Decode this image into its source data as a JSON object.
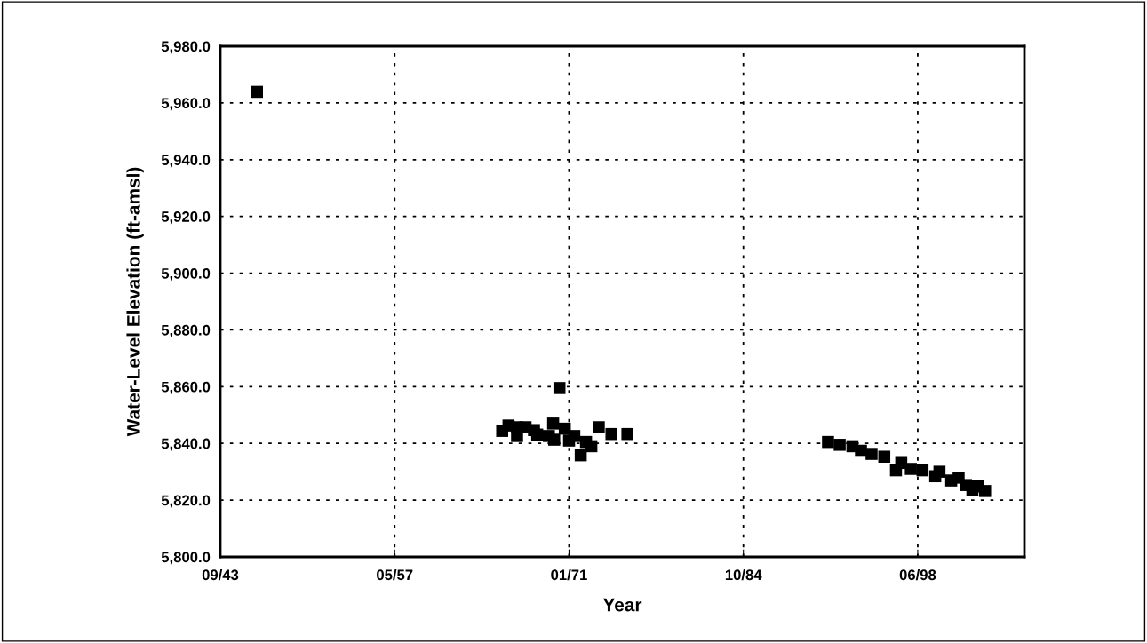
{
  "chart_data": {
    "type": "scatter",
    "xlabel": "Year",
    "ylabel": "Water-Level Elevation (ft-amsl)",
    "x": [
      "1946-08",
      "1965-11",
      "1966-05",
      "1967-01",
      "1967-01",
      "1967-09",
      "1968-05",
      "1968-08",
      "1969-07",
      "1969-11",
      "1969-12",
      "1970-05",
      "1970-10",
      "1971-02",
      "1971-07",
      "1972-01",
      "1972-06",
      "1972-11",
      "1973-06",
      "1974-06",
      "1975-09",
      "1991-06",
      "1992-05",
      "1993-05",
      "1994-01",
      "1994-11",
      "1995-11",
      "1996-10",
      "1997-03",
      "1997-12",
      "1998-11",
      "1999-11",
      "2000-03",
      "2001-02",
      "2001-09",
      "2002-04",
      "2002-10",
      "2003-03",
      "2003-10"
    ],
    "series": [
      {
        "color": "#000000",
        "values": [
          5963.9,
          5844.4,
          5846.3,
          5845.7,
          5842.6,
          5845.7,
          5844.7,
          5843.1,
          5842.6,
          5847.0,
          5841.3,
          5859.5,
          5845.2,
          5841.0,
          5842.6,
          5835.8,
          5840.5,
          5839.0,
          5845.7,
          5843.3,
          5843.3,
          5840.5,
          5839.5,
          5839.0,
          5837.4,
          5836.3,
          5835.3,
          5830.5,
          5833.1,
          5831.0,
          5830.5,
          5828.4,
          5830.0,
          5826.9,
          5827.9,
          5825.3,
          5823.7,
          5824.8,
          5823.2
        ]
      }
    ],
    "marker": "square",
    "grid": true,
    "legend": false,
    "xlim": [
      "1943-09-15",
      "2006-11-01"
    ],
    "xticks": [
      {
        "value": "1943-09-15",
        "label": "09/43"
      },
      {
        "value": "1957-05-24",
        "label": "05/57"
      },
      {
        "value": "1971-01-30",
        "label": "01/71"
      },
      {
        "value": "1984-10-08",
        "label": "10/84"
      },
      {
        "value": "1998-06-17",
        "label": "06/98"
      }
    ],
    "ylim": [
      5800,
      5980
    ],
    "yticks": [
      {
        "value": 5800,
        "label": "5,800.0"
      },
      {
        "value": 5820,
        "label": "5,820.0"
      },
      {
        "value": 5840,
        "label": "5,840.0"
      },
      {
        "value": 5860,
        "label": "5,860.0"
      },
      {
        "value": 5880,
        "label": "5,880.0"
      },
      {
        "value": 5900,
        "label": "5,900.0"
      },
      {
        "value": 5920,
        "label": "5,920.0"
      },
      {
        "value": 5940,
        "label": "5,940.0"
      },
      {
        "value": 5960,
        "label": "5,960.0"
      },
      {
        "value": 5980,
        "label": "5,980.0"
      }
    ]
  }
}
